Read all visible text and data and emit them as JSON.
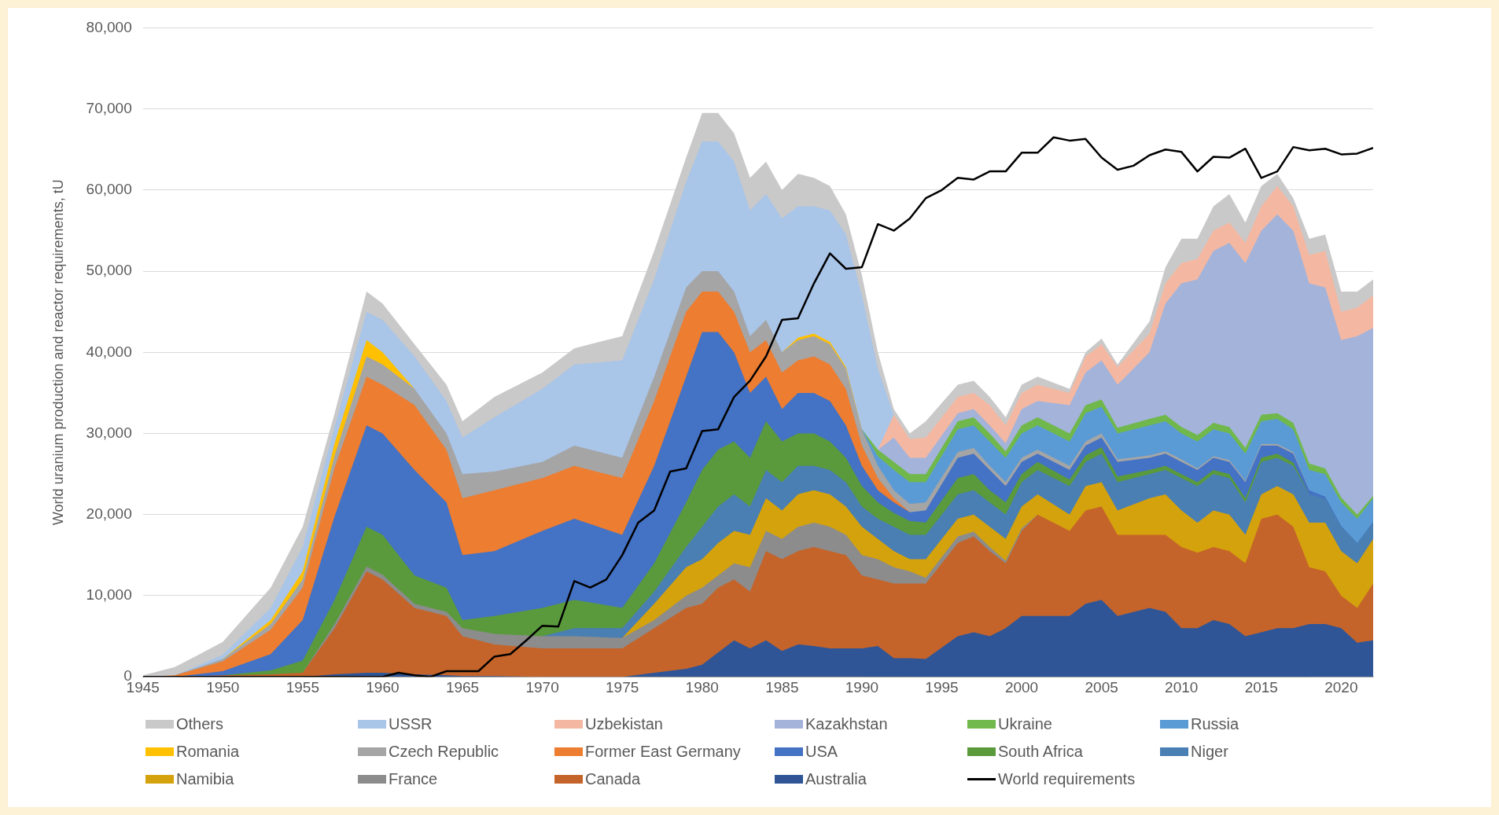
{
  "chart_data": {
    "type": "area",
    "stacked": true,
    "ylabel": "World uranium production and reactor requirements, tU",
    "grid": "y",
    "legend": "bottom",
    "xlim": [
      1945,
      2022
    ],
    "xticks": [
      1945,
      1950,
      1955,
      1960,
      1965,
      1970,
      1975,
      1980,
      1985,
      1990,
      1995,
      2000,
      2005,
      2010,
      2015,
      2020
    ],
    "ylim": [
      0,
      80000
    ],
    "yticks": [
      0,
      {
        "value": 10000,
        "label": "10,000"
      },
      {
        "value": 20000,
        "label": "20,000"
      },
      {
        "value": 30000,
        "label": "30,000"
      },
      {
        "value": 40000,
        "label": "40,000"
      },
      {
        "value": 50000,
        "label": "50,000"
      },
      {
        "value": 60000,
        "label": "60,000"
      },
      {
        "value": 70000,
        "label": "70,000"
      },
      {
        "value": 80000,
        "label": "80,000"
      }
    ],
    "x": [
      1945,
      1947,
      1950,
      1953,
      1955,
      1957,
      1959,
      1960,
      1962,
      1964,
      1965,
      1967,
      1970,
      1972,
      1975,
      1977,
      1979,
      1980,
      1981,
      1982,
      1983,
      1984,
      1985,
      1986,
      1987,
      1988,
      1989,
      1990,
      1991,
      1992,
      1993,
      1994,
      1996,
      1997,
      1998,
      1999,
      2000,
      2001,
      2003,
      2004,
      2005,
      2006,
      2008,
      2009,
      2010,
      2011,
      2012,
      2013,
      2014,
      2015,
      2016,
      2017,
      2018,
      2019,
      2020,
      2021,
      2022
    ],
    "series": [
      {
        "name": "Australia",
        "color": "#2f5597",
        "values": [
          null,
          null,
          null,
          null,
          0,
          300,
          500,
          500,
          300,
          200,
          100,
          100,
          0,
          null,
          0,
          500,
          1000,
          1500,
          3000,
          4500,
          3500,
          4500,
          3200,
          4000,
          3800,
          3500,
          3500,
          3500,
          3800,
          2300,
          2300,
          2200,
          5000,
          5500,
          5000,
          6000,
          7500,
          7500,
          7500,
          9000,
          9500,
          7500,
          8500,
          8000,
          6000,
          6000,
          7000,
          6500,
          5000,
          5500,
          6000,
          6000,
          6500,
          6500,
          6000,
          4200,
          4500
        ]
      },
      {
        "name": "Canada",
        "color": "#c5642a",
        "values": [
          null,
          0,
          200,
          300,
          500,
          5700,
          12500,
          11500,
          8200,
          7300,
          4900,
          3900,
          3500,
          3500,
          3500,
          5500,
          7500,
          7500,
          8000,
          7500,
          7000,
          11000,
          11300,
          11500,
          12200,
          12000,
          11500,
          9000,
          8200,
          9200,
          9200,
          9300,
          11500,
          11800,
          10500,
          8000,
          10500,
          12500,
          10500,
          11500,
          11500,
          10000,
          9000,
          9500,
          10000,
          9300,
          9000,
          9000,
          9000,
          14000,
          14000,
          12500,
          7000,
          6500,
          4000,
          4300,
          7000
        ]
      },
      {
        "name": "France",
        "color": "#8c8c8c",
        "values": [
          null,
          null,
          null,
          null,
          0,
          500,
          600,
          600,
          500,
          500,
          1000,
          1300,
          1500,
          1500,
          1300,
          1000,
          1500,
          2000,
          1500,
          2000,
          3000,
          2500,
          2500,
          3000,
          3000,
          3000,
          2500,
          2500,
          2500,
          2000,
          1500,
          700,
          800,
          600,
          500,
          300,
          300,
          0,
          null,
          null,
          null,
          null,
          null,
          null,
          null,
          null,
          null,
          null,
          null,
          null,
          null,
          null,
          null,
          null,
          null,
          null,
          null
        ]
      },
      {
        "name": "Namibia",
        "color": "#d4a20c",
        "values": [
          null,
          null,
          null,
          null,
          null,
          null,
          null,
          null,
          null,
          null,
          null,
          null,
          null,
          null,
          0,
          2000,
          3500,
          3500,
          4000,
          4000,
          4000,
          4000,
          3500,
          4000,
          4000,
          4000,
          3500,
          3500,
          2500,
          2000,
          1500,
          2300,
          2200,
          2100,
          2500,
          2700,
          2700,
          2500,
          2000,
          3000,
          3000,
          3000,
          4500,
          5000,
          4500,
          3700,
          4500,
          4500,
          3500,
          3000,
          3500,
          4000,
          5500,
          6000,
          5500,
          5500,
          5500
        ]
      },
      {
        "name": "Niger",
        "color": "#4a7fb3",
        "values": [
          null,
          null,
          null,
          null,
          null,
          null,
          null,
          null,
          null,
          null,
          null,
          null,
          0,
          1000,
          1200,
          1500,
          2500,
          4000,
          4500,
          4500,
          3500,
          3500,
          3500,
          3500,
          3000,
          3000,
          3000,
          2500,
          2500,
          3000,
          3000,
          3000,
          3000,
          3000,
          3000,
          3000,
          3000,
          3000,
          3500,
          3000,
          3500,
          3500,
          3000,
          3000,
          4000,
          4500,
          4500,
          4500,
          4000,
          4000,
          3500,
          3500,
          3500,
          3000,
          3000,
          2500,
          2000
        ]
      },
      {
        "name": "South Africa",
        "color": "#5a9a3c",
        "values": [
          null,
          null,
          0,
          500,
          1500,
          3000,
          4900,
          4900,
          3500,
          3000,
          1000,
          2200,
          3500,
          3500,
          2500,
          3500,
          5500,
          7000,
          7000,
          6500,
          6000,
          6000,
          5000,
          4000,
          4000,
          3500,
          3000,
          2500,
          2000,
          1700,
          1700,
          1500,
          2000,
          2000,
          1500,
          1500,
          1000,
          1000,
          800,
          800,
          800,
          700,
          500,
          500,
          500,
          500,
          500,
          500,
          500,
          500,
          500,
          400,
          0,
          null,
          null,
          null,
          null
        ]
      },
      {
        "name": "USA",
        "color": "#4472c4",
        "values": [
          null,
          0,
          500,
          2000,
          5000,
          10300,
          12500,
          12500,
          13000,
          10500,
          8000,
          8000,
          9500,
          10000,
          9000,
          12000,
          15500,
          17000,
          14500,
          11000,
          8000,
          5500,
          4000,
          5000,
          5000,
          5000,
          4000,
          2500,
          1500,
          1300,
          1100,
          1500,
          2500,
          2500,
          2500,
          2000,
          1500,
          1000,
          1200,
          1200,
          1200,
          1800,
          1500,
          1500,
          1500,
          1500,
          1500,
          1500,
          2000,
          1500,
          1000,
          1100,
          500,
          200,
          100,
          0,
          100
        ]
      },
      {
        "name": "Former East Germany",
        "color": "#ed7d31",
        "values": [
          0,
          200,
          1200,
          3000,
          4000,
          6000,
          6000,
          6000,
          8000,
          6500,
          7000,
          7500,
          6500,
          6500,
          7000,
          8000,
          8000,
          5000,
          5000,
          5000,
          5000,
          4500,
          4500,
          4000,
          4500,
          4500,
          4500,
          2500,
          1500,
          500,
          0,
          null,
          null,
          null,
          null,
          null,
          null,
          null,
          null,
          null,
          null,
          null,
          null,
          null,
          null,
          null,
          null,
          null,
          null,
          null,
          null,
          null,
          null,
          null,
          null,
          null,
          null
        ]
      },
      {
        "name": "Czech Republic",
        "color": "#a5a5a5",
        "values": [
          null,
          0,
          300,
          700,
          1000,
          1500,
          2500,
          2500,
          2000,
          2000,
          3000,
          2300,
          2000,
          2500,
          2500,
          3000,
          3000,
          2500,
          2500,
          2500,
          2000,
          2500,
          2500,
          2500,
          2500,
          2500,
          2500,
          2000,
          1500,
          1000,
          1000,
          1000,
          700,
          700,
          500,
          500,
          500,
          500,
          500,
          500,
          500,
          300,
          300,
          300,
          300,
          200,
          200,
          200,
          200,
          200,
          200,
          200,
          0,
          null,
          null,
          null,
          null
        ]
      },
      {
        "name": "Romania",
        "color": "#ffc000",
        "values": [
          null,
          null,
          0,
          500,
          1000,
          1500,
          2000,
          1500,
          0,
          null,
          null,
          null,
          null,
          null,
          null,
          null,
          null,
          null,
          null,
          null,
          null,
          null,
          0,
          300,
          300,
          300,
          200,
          0,
          null,
          null,
          null,
          null,
          null,
          null,
          null,
          null,
          null,
          null,
          null,
          null,
          null,
          null,
          null,
          null,
          null,
          null,
          null,
          null,
          null,
          null,
          null,
          null,
          null,
          null,
          null,
          null,
          null
        ]
      },
      {
        "name": "Russia",
        "color": "#5b9bd5",
        "values": [
          null,
          null,
          null,
          null,
          null,
          null,
          null,
          null,
          null,
          null,
          null,
          null,
          null,
          null,
          null,
          null,
          null,
          null,
          null,
          null,
          null,
          null,
          null,
          null,
          null,
          null,
          null,
          0,
          1200,
          2500,
          2700,
          2500,
          2800,
          2800,
          3000,
          3000,
          3000,
          3000,
          3000,
          3500,
          3300,
          3200,
          3700,
          3700,
          3200,
          3300,
          3300,
          3300,
          3300,
          2800,
          3100,
          2800,
          2500,
          2800,
          2900,
          3000,
          2900
        ]
      },
      {
        "name": "Ukraine",
        "color": "#70b84c",
        "values": [
          null,
          null,
          null,
          null,
          null,
          null,
          null,
          null,
          null,
          null,
          null,
          null,
          null,
          null,
          null,
          null,
          null,
          null,
          null,
          null,
          null,
          null,
          null,
          null,
          null,
          null,
          null,
          0,
          800,
          1000,
          1000,
          1000,
          1000,
          1000,
          1000,
          800,
          1000,
          1000,
          1000,
          1000,
          900,
          700,
          800,
          800,
          800,
          800,
          800,
          800,
          700,
          800,
          700,
          800,
          800,
          700,
          600,
          500,
          300
        ]
      },
      {
        "name": "Kazakhstan",
        "color": "#a4b3da",
        "values": [
          null,
          null,
          null,
          null,
          null,
          null,
          null,
          null,
          null,
          null,
          null,
          null,
          null,
          null,
          null,
          null,
          null,
          null,
          null,
          null,
          null,
          null,
          null,
          null,
          null,
          null,
          null,
          null,
          0,
          3000,
          2000,
          2000,
          1000,
          1000,
          1000,
          1000,
          2000,
          2000,
          3500,
          4000,
          4800,
          5300,
          8200,
          13700,
          17700,
          19200,
          21200,
          22700,
          22800,
          22700,
          24500,
          23700,
          22200,
          22300,
          19400,
          22000,
          20700
        ]
      },
      {
        "name": "Uzbekistan",
        "color": "#f4b8a2",
        "values": [
          null,
          null,
          null,
          null,
          null,
          null,
          null,
          null,
          null,
          null,
          null,
          null,
          null,
          null,
          null,
          null,
          null,
          null,
          null,
          null,
          null,
          null,
          null,
          null,
          null,
          null,
          null,
          null,
          0,
          2800,
          2300,
          2500,
          2000,
          2000,
          2500,
          2200,
          2000,
          2000,
          1500,
          2000,
          2000,
          2200,
          2300,
          2500,
          2500,
          2500,
          2500,
          2500,
          2500,
          3000,
          3500,
          3000,
          3500,
          4500,
          3500,
          3500,
          4000
        ]
      },
      {
        "name": "USSR",
        "color": "#a9c5e8",
        "values": [
          null,
          0,
          500,
          1500,
          3000,
          2000,
          3500,
          4000,
          4000,
          4000,
          4500,
          6700,
          9000,
          10000,
          12000,
          12000,
          13000,
          16000,
          16000,
          16000,
          15500,
          15500,
          16500,
          16200,
          15700,
          16200,
          16300,
          16500,
          10000,
          0,
          null,
          null,
          null,
          null,
          null,
          null,
          null,
          null,
          null,
          null,
          null,
          null,
          null,
          null,
          null,
          null,
          null,
          null,
          null,
          null,
          null,
          null,
          null,
          null,
          null,
          null,
          null
        ]
      },
      {
        "name": "Others",
        "color": "#c9c9c9",
        "values": [
          200,
          1000,
          1600,
          2500,
          2500,
          1700,
          2500,
          2000,
          1500,
          2000,
          2000,
          2500,
          2000,
          2000,
          3000,
          3500,
          3000,
          3500,
          3500,
          3500,
          4000,
          4000,
          3500,
          4000,
          3500,
          3000,
          2500,
          2500,
          2000,
          700,
          700,
          2000,
          1500,
          1500,
          1000,
          1000,
          1000,
          1000,
          500,
          500,
          700,
          300,
          1500,
          2000,
          3000,
          2500,
          3000,
          3500,
          2500,
          2500,
          1500,
          1000,
          2000,
          2000,
          2500,
          2000,
          2000
        ]
      },
      {
        "name": "World requirements",
        "type": "line",
        "color": "#000000",
        "x": [
          1945,
          1950,
          1955,
          1960,
          1961,
          1962,
          1963,
          1964,
          1965,
          1966,
          1967,
          1968,
          1969,
          1970,
          1971,
          1972,
          1973,
          1974,
          1975,
          1976,
          1977,
          1978,
          1979,
          1980,
          1981,
          1982,
          1983,
          1984,
          1985,
          1986,
          1987,
          1988,
          1989,
          1990,
          1991,
          1992,
          1993,
          1994,
          1995,
          1996,
          1997,
          1998,
          1999,
          2000,
          2001,
          2002,
          2003,
          2004,
          2005,
          2006,
          2007,
          2008,
          2009,
          2010,
          2011,
          2012,
          2013,
          2014,
          2015,
          2016,
          2017,
          2018,
          2019,
          2020,
          2021,
          2022
        ],
        "values": [
          0,
          0,
          0,
          0,
          500,
          200,
          0,
          700,
          700,
          700,
          2500,
          2800,
          4500,
          6300,
          6200,
          11800,
          11000,
          12000,
          15000,
          19000,
          20500,
          25300,
          25700,
          30300,
          30500,
          34500,
          36500,
          39500,
          44000,
          44200,
          48500,
          52200,
          50300,
          50500,
          55800,
          55000,
          56500,
          59000,
          60000,
          61500,
          61300,
          62300,
          62300,
          64600,
          64600,
          66500,
          66100,
          66300,
          64000,
          62500,
          63000,
          64300,
          65000,
          64700,
          62300,
          64100,
          64000,
          65100,
          61500,
          62300,
          65300,
          64900,
          65100,
          64400,
          64500,
          65200
        ]
      }
    ]
  }
}
